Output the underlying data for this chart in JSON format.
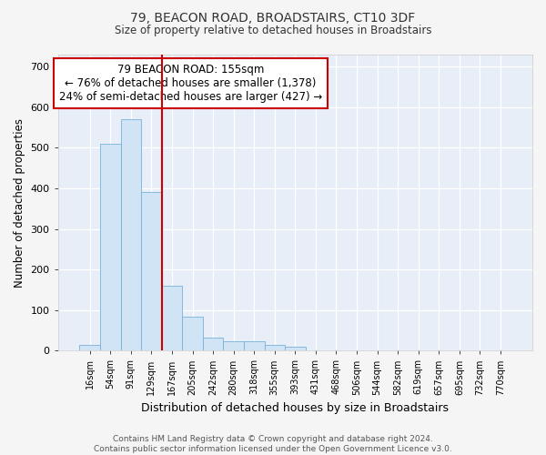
{
  "title_line1": "79, BEACON ROAD, BROADSTAIRS, CT10 3DF",
  "title_line2": "Size of property relative to detached houses in Broadstairs",
  "xlabel": "Distribution of detached houses by size in Broadstairs",
  "ylabel": "Number of detached properties",
  "bin_labels": [
    "16sqm",
    "54sqm",
    "91sqm",
    "129sqm",
    "167sqm",
    "205sqm",
    "242sqm",
    "280sqm",
    "318sqm",
    "355sqm",
    "393sqm",
    "431sqm",
    "468sqm",
    "506sqm",
    "544sqm",
    "582sqm",
    "619sqm",
    "657sqm",
    "695sqm",
    "732sqm",
    "770sqm"
  ],
  "bar_values": [
    15,
    510,
    570,
    390,
    160,
    83,
    33,
    22,
    22,
    13,
    10,
    0,
    0,
    0,
    0,
    0,
    0,
    0,
    0,
    0,
    0
  ],
  "bar_color": "#d0e4f5",
  "bar_edge_color": "#7ab0d8",
  "vline_x_idx": 3.5,
  "vline_color": "#cc0000",
  "annotation_text": "79 BEACON ROAD: 155sqm\n← 76% of detached houses are smaller (1,378)\n24% of semi-detached houses are larger (427) →",
  "annotation_box_color": "#ffffff",
  "annotation_box_edge": "#cc0000",
  "ylim": [
    0,
    730
  ],
  "yticks": [
    0,
    100,
    200,
    300,
    400,
    500,
    600,
    700
  ],
  "footer_text": "Contains HM Land Registry data © Crown copyright and database right 2024.\nContains public sector information licensed under the Open Government Licence v3.0.",
  "fig_bg_color": "#f5f5f5",
  "plot_bg_color": "#e8eef8"
}
